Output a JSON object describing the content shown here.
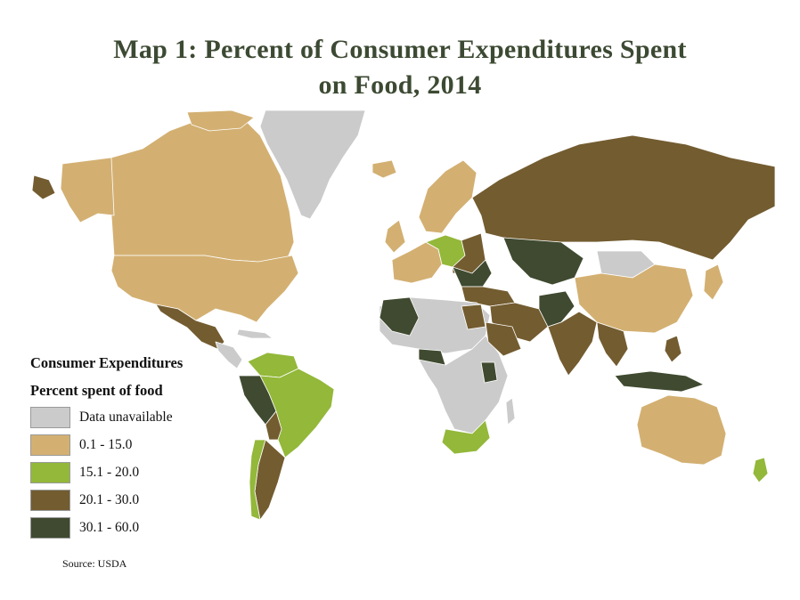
{
  "title": {
    "line1": "Map 1: Percent of Consumer Expenditures Spent",
    "line2": "on Food, 2014"
  },
  "legend": {
    "heading1": "Consumer Expenditures",
    "heading2": "Percent spent of food",
    "items": [
      {
        "label": "Data unavailable",
        "color": "#cbcbcb"
      },
      {
        "label": "0.1 - 15.0",
        "color": "#d3b072"
      },
      {
        "label": "15.1 - 20.0",
        "color": "#93b83a"
      },
      {
        "label": "20.1 - 30.0",
        "color": "#735c30"
      },
      {
        "label": "30.1 - 60.0",
        "color": "#3f4a30"
      }
    ]
  },
  "source": "Source: USDA",
  "colors": {
    "title": "#3d4a33",
    "border": "#ffffff"
  }
}
